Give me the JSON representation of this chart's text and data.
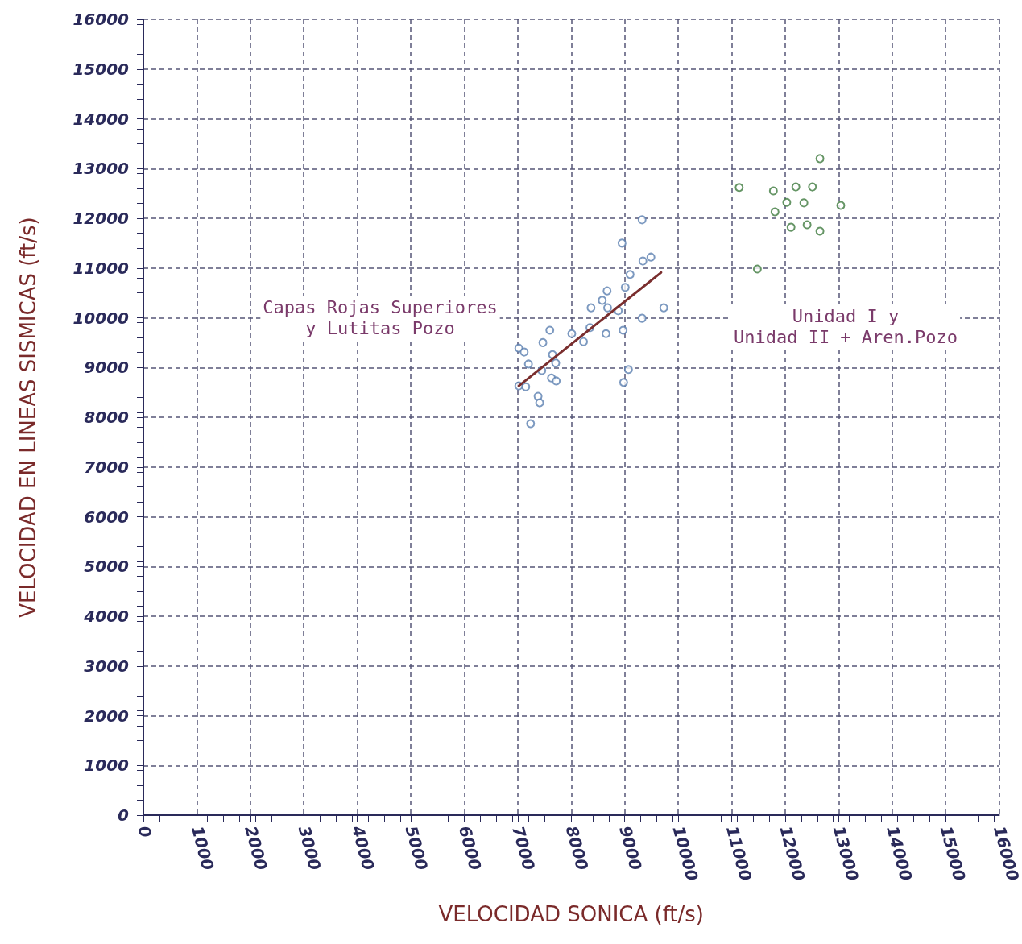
{
  "chart_data": {
    "type": "scatter",
    "xlabel": "VELOCIDAD SONICA (ft/s)",
    "ylabel": "VELOCIDAD EN LINEAS SISMICAS (ft/s)",
    "xlim": [
      0,
      16000
    ],
    "ylim": [
      0,
      16000
    ],
    "xticks": [
      0,
      1000,
      2000,
      3000,
      4000,
      5000,
      6000,
      7000,
      8000,
      9000,
      10000,
      11000,
      12000,
      13000,
      14000,
      15000,
      16000
    ],
    "yticks": [
      0,
      1000,
      2000,
      3000,
      4000,
      5000,
      6000,
      7000,
      8000,
      9000,
      10000,
      11000,
      12000,
      13000,
      14000,
      15000,
      16000
    ],
    "grid": true,
    "marker": "circle",
    "series": [
      {
        "color": "#5b7fb0",
        "x": [
          9325,
          8950,
          9490,
          9340,
          9100,
          9010,
          8670,
          8580,
          8370,
          8680,
          8880,
          9730,
          9325,
          8970,
          8650,
          8350,
          8010,
          8230,
          7600,
          7470,
          7020,
          7120,
          7650,
          7710,
          7200,
          7450,
          7630,
          7720,
          9070,
          8980,
          7020,
          7150,
          7380,
          7410,
          7240
        ],
        "values": [
          11970,
          11500,
          11220,
          11140,
          10870,
          10610,
          10540,
          10350,
          10200,
          10200,
          10140,
          10200,
          9990,
          9750,
          9680,
          9800,
          9680,
          9520,
          9750,
          9500,
          9390,
          9310,
          9260,
          9090,
          9070,
          8940,
          8790,
          8730,
          8960,
          8700,
          8630,
          8610,
          8420,
          8290,
          7870
        ]
      },
      {
        "color": "#3f7a3f",
        "x": [
          12650,
          11140,
          11780,
          12200,
          12510,
          12030,
          12350,
          13040,
          11810,
          12110,
          12410,
          12650,
          11480
        ],
        "values": [
          13200,
          12620,
          12550,
          12630,
          12630,
          12320,
          12310,
          12260,
          12130,
          11820,
          11870,
          11740,
          10980
        ]
      },
      {
        "type": "line",
        "color": "#7a2e2e",
        "marker": "none",
        "line_style": "solid",
        "x": [
          7020,
          9680
        ],
        "values": [
          8630,
          10910
        ]
      }
    ],
    "annotations": [
      "Capas Rojas Superiores\ny Lutitas Pozo",
      "Unidad I y\nUnidad II + Aren.Pozo"
    ]
  }
}
